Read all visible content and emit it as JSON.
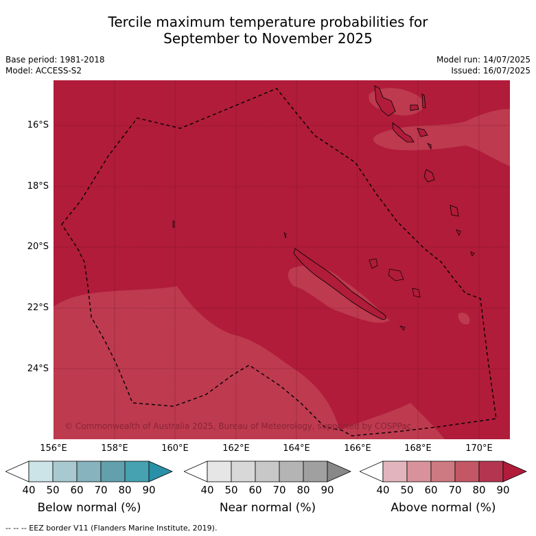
{
  "title": {
    "line1": "Tercile maximum temperature probabilities for",
    "line2": "September to November 2025"
  },
  "meta": {
    "base_period": "Base period: 1981-2018",
    "model": "Model: ACCESS-S2",
    "model_run": "Model run: 14/07/2025",
    "issued": "Issued: 16/07/2025"
  },
  "map": {
    "lat_labels": [
      "16°S",
      "18°S",
      "20°S",
      "22°S",
      "24°S"
    ],
    "lon_labels": [
      "156°E",
      "158°E",
      "160°E",
      "162°E",
      "164°E",
      "166°E",
      "168°E",
      "170°E"
    ],
    "copyright": "© Commonwealth of Australia 2025, Bureau of Meteorology, supported by COSPPac",
    "dominant_color": "#b01c3a",
    "lower_prob_color": "#bd3a4f"
  },
  "colorbars": [
    {
      "label": "Below normal (%)",
      "colors": [
        "#ffffff",
        "#cce3e8",
        "#a8c9cf",
        "#86b3bd",
        "#63a0ad",
        "#46a1b0",
        "#2a90a8"
      ]
    },
    {
      "label": "Near normal (%)",
      "colors": [
        "#ffffff",
        "#e6e6e6",
        "#d8d8d8",
        "#c8c8c8",
        "#b4b4b4",
        "#a0a0a0",
        "#888888"
      ]
    },
    {
      "label": "Above normal (%)",
      "colors": [
        "#ffffff",
        "#e2b5bd",
        "#d9929b",
        "#cd7a82",
        "#c45766",
        "#b43550",
        "#b01c3a"
      ]
    }
  ],
  "ticks": [
    "40",
    "50",
    "60",
    "70",
    "80",
    "90"
  ],
  "footer": "--  --  -- EEZ border V11 (Flanders Marine Institute, 2019)."
}
